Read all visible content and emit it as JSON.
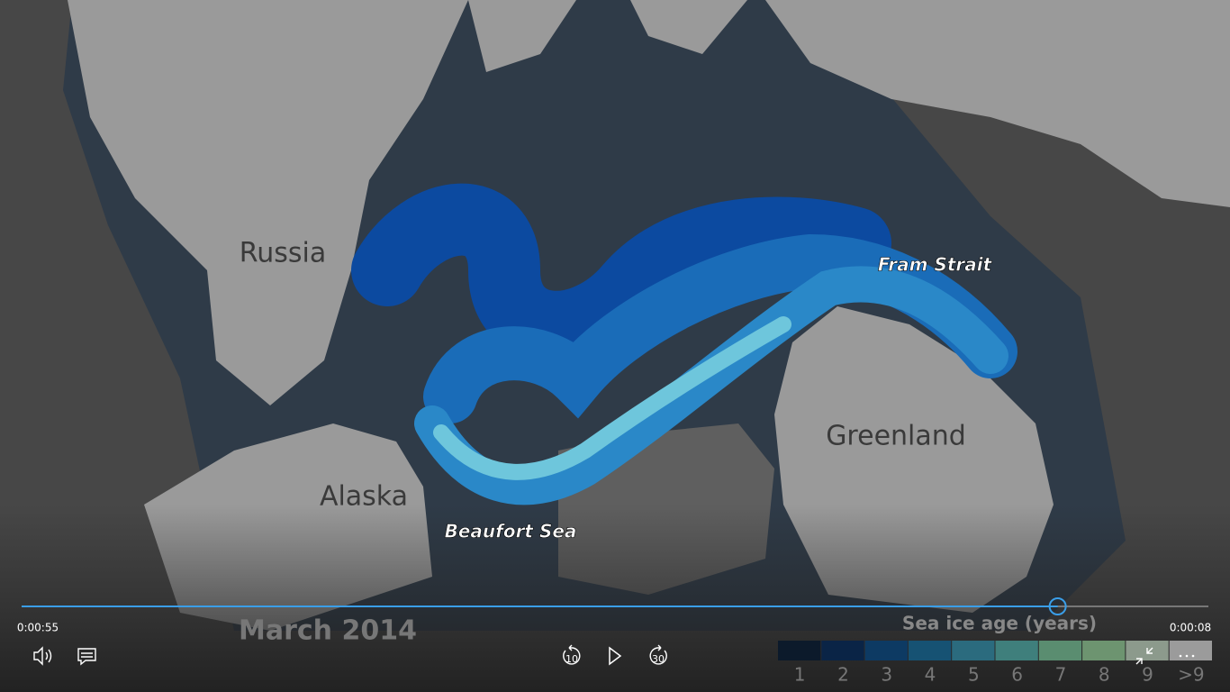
{
  "map": {
    "labels": [
      "Russia",
      "Alaska",
      "Greenland"
    ],
    "features": [
      "Fram Strait",
      "Beaufort Sea"
    ],
    "date_caption": "March 2014"
  },
  "legend": {
    "title": "Sea ice age (years)",
    "items": [
      {
        "label": "1",
        "color": "#0c1a2b"
      },
      {
        "label": "2",
        "color": "#0a2446"
      },
      {
        "label": "3",
        "color": "#0d3a63"
      },
      {
        "label": "4",
        "color": "#165273"
      },
      {
        "label": "5",
        "color": "#2b6b7e"
      },
      {
        "label": "6",
        "color": "#3f7f7c"
      },
      {
        "label": "7",
        "color": "#5a8d70"
      },
      {
        "label": "8",
        "color": "#6d9470"
      },
      {
        "label": "9",
        "color": "#8c9a8c"
      },
      {
        "label": ">9",
        "color": "#9b9b9b"
      }
    ]
  },
  "player": {
    "elapsed": "0:00:55",
    "remaining": "0:00:08",
    "progress": 0.873,
    "skip_back": "10",
    "skip_forward": "30"
  }
}
